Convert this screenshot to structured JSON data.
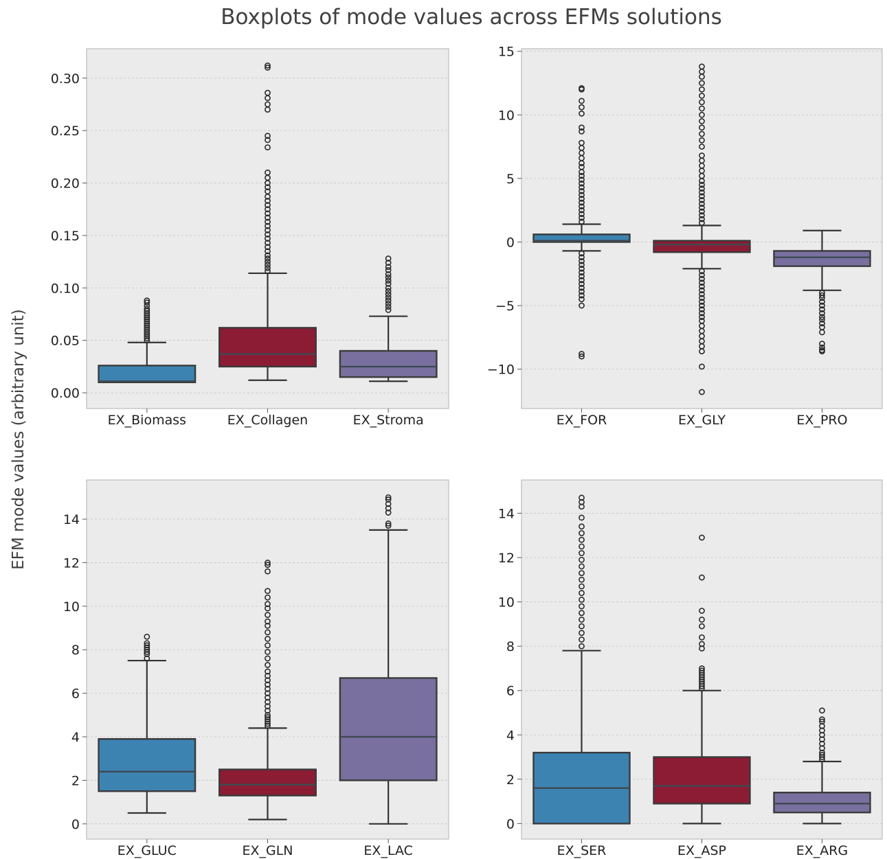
{
  "figure": {
    "title": "Boxplots of mode values across EFMs solutions",
    "ylabel": "EFM mode values (arbitrary unit)"
  },
  "colors": {
    "series_1": "#3d83b2",
    "series_2": "#8b1c34",
    "series_3": "#79709f",
    "panel_background": "#ebebeb"
  },
  "chart_data": [
    {
      "type": "box",
      "categories": [
        "EX_Biomass",
        "EX_Collagen",
        "EX_Stroma"
      ],
      "ylim": [
        -0.015,
        0.328
      ],
      "yticks": [
        0.0,
        0.05,
        0.1,
        0.15,
        0.2,
        0.25,
        0.3
      ],
      "ytick_labels": [
        "0.00",
        "0.05",
        "0.10",
        "0.15",
        "0.20",
        "0.25",
        "0.30"
      ],
      "grid": true,
      "boxes": [
        {
          "category": "EX_Biomass",
          "whisker_low": 0.01,
          "q1": 0.01,
          "median": 0.011,
          "q3": 0.026,
          "whisker_high": 0.048,
          "fliers": [
            0.05,
            0.052,
            0.054,
            0.056,
            0.058,
            0.06,
            0.062,
            0.064,
            0.066,
            0.068,
            0.07,
            0.072,
            0.074,
            0.076,
            0.078,
            0.08,
            0.083,
            0.086,
            0.088
          ]
        },
        {
          "category": "EX_Collagen",
          "whisker_low": 0.012,
          "q1": 0.025,
          "median": 0.037,
          "q3": 0.062,
          "whisker_high": 0.114,
          "fliers": [
            0.116,
            0.119,
            0.122,
            0.125,
            0.128,
            0.131,
            0.135,
            0.139,
            0.143,
            0.147,
            0.151,
            0.155,
            0.159,
            0.163,
            0.167,
            0.171,
            0.175,
            0.179,
            0.183,
            0.187,
            0.192,
            0.196,
            0.2,
            0.205,
            0.21,
            0.234,
            0.241,
            0.245,
            0.27,
            0.275,
            0.281,
            0.286,
            0.31,
            0.312
          ]
        },
        {
          "category": "EX_Stroma",
          "whisker_low": 0.011,
          "q1": 0.015,
          "median": 0.025,
          "q3": 0.04,
          "whisker_high": 0.073,
          "fliers": [
            0.079,
            0.082,
            0.085,
            0.088,
            0.091,
            0.094,
            0.097,
            0.1,
            0.104,
            0.107,
            0.11,
            0.113,
            0.117,
            0.12,
            0.124,
            0.128
          ]
        }
      ]
    },
    {
      "type": "box",
      "categories": [
        "EX_FOR",
        "EX_GLY",
        "EX_PRO"
      ],
      "ylim": [
        -13.1,
        15.2
      ],
      "yticks": [
        -10,
        -5,
        0,
        5,
        10,
        15
      ],
      "ytick_labels": [
        "−10",
        "−5",
        "0",
        "5",
        "10",
        "15"
      ],
      "grid": true,
      "boxes": [
        {
          "category": "EX_FOR",
          "whisker_low": -0.7,
          "q1": 0.0,
          "median": 0.1,
          "q3": 0.6,
          "whisker_high": 1.4,
          "fliers": [
            1.6,
            1.9,
            2.2,
            2.5,
            2.8,
            3.1,
            3.4,
            3.7,
            4.0,
            4.3,
            4.6,
            4.9,
            5.2,
            5.5,
            5.9,
            6.2,
            6.6,
            7.0,
            7.4,
            7.8,
            8.7,
            9.0,
            10.1,
            10.6,
            11.1,
            12.0,
            12.1,
            -0.9,
            -1.2,
            -1.5,
            -1.8,
            -2.1,
            -2.4,
            -2.7,
            -3.0,
            -3.3,
            -3.6,
            -3.9,
            -4.2,
            -4.5,
            -5.0,
            -8.8,
            -9.0
          ]
        },
        {
          "category": "EX_GLY",
          "whisker_low": -2.1,
          "q1": -0.8,
          "median": -0.2,
          "q3": 0.1,
          "whisker_high": 1.3,
          "fliers": [
            1.5,
            1.8,
            2.1,
            2.4,
            2.7,
            3.0,
            3.3,
            3.6,
            3.9,
            4.2,
            4.5,
            4.8,
            5.2,
            5.6,
            6.0,
            6.4,
            6.8,
            7.5,
            8.0,
            8.5,
            9.0,
            9.5,
            10.0,
            10.5,
            11.0,
            11.5,
            12.0,
            12.5,
            13.0,
            13.4,
            13.8,
            -2.3,
            -2.6,
            -2.9,
            -3.2,
            -3.5,
            -3.8,
            -4.1,
            -4.4,
            -4.7,
            -5.0,
            -5.3,
            -5.6,
            -5.9,
            -6.2,
            -6.6,
            -7.0,
            -7.4,
            -7.8,
            -8.2,
            -8.6,
            -9.8,
            -11.8
          ]
        },
        {
          "category": "EX_PRO",
          "whisker_low": -3.8,
          "q1": -1.9,
          "median": -1.2,
          "q3": -0.7,
          "whisker_high": 0.9,
          "fliers": [
            -4.0,
            -4.2,
            -4.4,
            -4.7,
            -5.0,
            -5.3,
            -5.6,
            -5.9,
            -6.1,
            -6.4,
            -6.7,
            -7.1,
            -8.0,
            -8.3,
            -8.5,
            -8.6
          ]
        }
      ]
    },
    {
      "type": "box",
      "categories": [
        "EX_GLUC",
        "EX_GLN",
        "EX_LAC"
      ],
      "ylim": [
        -0.7,
        15.8
      ],
      "yticks": [
        0,
        2,
        4,
        6,
        8,
        10,
        12,
        14
      ],
      "ytick_labels": [
        "0",
        "2",
        "4",
        "6",
        "8",
        "10",
        "12",
        "14"
      ],
      "grid": true,
      "boxes": [
        {
          "category": "EX_GLUC",
          "whisker_low": 0.5,
          "q1": 1.5,
          "median": 2.4,
          "q3": 3.9,
          "whisker_high": 7.5,
          "fliers": [
            7.6,
            7.8,
            7.9,
            8.0,
            8.1,
            8.2,
            8.3,
            8.6
          ]
        },
        {
          "category": "EX_GLN",
          "whisker_low": 0.2,
          "q1": 1.3,
          "median": 1.8,
          "q3": 2.5,
          "whisker_high": 4.4,
          "fliers": [
            4.5,
            4.6,
            4.7,
            4.8,
            4.9,
            5.0,
            5.2,
            5.4,
            5.6,
            5.8,
            6.0,
            6.2,
            6.4,
            6.6,
            6.8,
            7.0,
            7.3,
            7.6,
            7.9,
            8.2,
            8.5,
            8.8,
            9.1,
            9.3,
            9.6,
            9.9,
            10.1,
            10.4,
            10.7,
            11.6,
            11.9,
            12.0
          ]
        },
        {
          "category": "EX_LAC",
          "whisker_low": 0.0,
          "q1": 2.0,
          "median": 4.0,
          "q3": 6.7,
          "whisker_high": 13.5,
          "fliers": [
            13.7,
            13.8,
            14.3,
            14.5,
            14.7,
            14.9,
            15.0
          ]
        }
      ]
    },
    {
      "type": "box",
      "categories": [
        "EX_SER",
        "EX_ASP",
        "EX_ARG"
      ],
      "ylim": [
        -0.7,
        15.5
      ],
      "yticks": [
        0,
        2,
        4,
        6,
        8,
        10,
        12,
        14
      ],
      "ytick_labels": [
        "0",
        "2",
        "4",
        "6",
        "8",
        "10",
        "12",
        "14"
      ],
      "grid": true,
      "boxes": [
        {
          "category": "EX_SER",
          "whisker_low": 0.0,
          "q1": 0.0,
          "median": 1.6,
          "q3": 3.2,
          "whisker_high": 7.8,
          "fliers": [
            8.0,
            8.3,
            8.6,
            8.9,
            9.2,
            9.5,
            9.8,
            10.1,
            10.4,
            10.7,
            11.0,
            11.3,
            11.6,
            11.9,
            12.2,
            12.5,
            12.8,
            13.1,
            13.4,
            13.8,
            14.3,
            14.5,
            14.7
          ]
        },
        {
          "category": "EX_ASP",
          "whisker_low": 0.0,
          "q1": 0.9,
          "median": 1.7,
          "q3": 3.0,
          "whisker_high": 6.0,
          "fliers": [
            6.1,
            6.2,
            6.3,
            6.4,
            6.5,
            6.6,
            6.7,
            6.8,
            6.9,
            7.0,
            7.9,
            8.1,
            8.4,
            8.9,
            9.2,
            9.6,
            11.1,
            12.9
          ]
        },
        {
          "category": "EX_ARG",
          "whisker_low": 0.0,
          "q1": 0.5,
          "median": 0.9,
          "q3": 1.4,
          "whisker_high": 2.8,
          "fliers": [
            2.9,
            3.0,
            3.1,
            3.2,
            3.4,
            3.6,
            3.8,
            4.0,
            4.2,
            4.4,
            4.6,
            4.7,
            5.1
          ]
        }
      ]
    }
  ]
}
